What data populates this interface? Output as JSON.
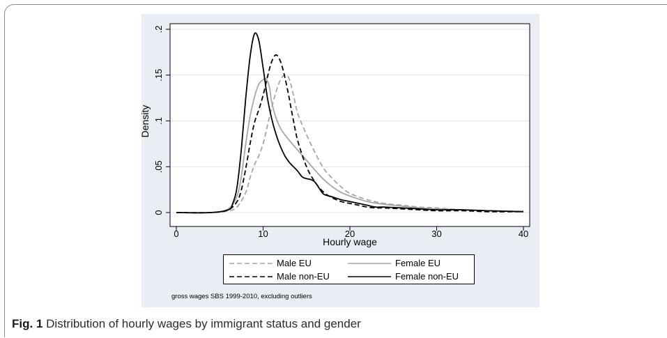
{
  "caption": {
    "label": "Fig. 1",
    "text": "Distribution of hourly wages by immigrant status and gender"
  },
  "note": "gross wages SBS 1999-2010, excluding outliers",
  "chart_data": {
    "type": "line",
    "title": "",
    "xlabel": "Hourly wage",
    "ylabel": "Density",
    "xlim": [
      0,
      40
    ],
    "ylim": [
      0,
      0.2
    ],
    "xticks": [
      0,
      10,
      20,
      30,
      40
    ],
    "xtick_labels": [
      "0",
      "10",
      "20",
      "30",
      "40"
    ],
    "yticks": [
      0,
      0.05,
      0.1,
      0.15,
      0.2
    ],
    "ytick_labels": [
      "0",
      ".05",
      ".1",
      ".15",
      ".2"
    ],
    "grid": "horizontal",
    "legend_position": "bottom",
    "series": [
      {
        "name": "Male EU",
        "color": "#a6a6a6",
        "style": "dashed",
        "x": [
          0,
          4,
          6,
          7,
          8,
          8.5,
          9,
          9.5,
          10,
          10.5,
          11,
          11.5,
          12,
          12.5,
          13,
          13.5,
          14,
          15,
          16,
          17,
          18,
          19,
          20,
          22,
          24,
          26,
          28,
          30,
          33,
          36,
          40
        ],
        "y": [
          0,
          0,
          0.002,
          0.006,
          0.022,
          0.038,
          0.052,
          0.062,
          0.075,
          0.095,
          0.115,
          0.132,
          0.145,
          0.15,
          0.146,
          0.128,
          0.108,
          0.085,
          0.065,
          0.048,
          0.037,
          0.028,
          0.021,
          0.014,
          0.01,
          0.008,
          0.006,
          0.005,
          0.003,
          0.002,
          0.001
        ]
      },
      {
        "name": "Female EU",
        "color": "#a6a6a6",
        "style": "solid",
        "x": [
          0,
          4,
          6,
          7,
          7.5,
          8,
          8.5,
          9,
          9.5,
          10,
          10.3,
          10.7,
          11,
          11.5,
          12,
          12.5,
          13,
          14,
          15,
          16,
          17,
          18,
          19,
          20,
          22,
          24,
          26,
          28,
          30,
          33,
          36,
          40
        ],
        "y": [
          0,
          0,
          0.004,
          0.018,
          0.04,
          0.075,
          0.105,
          0.126,
          0.14,
          0.145,
          0.146,
          0.138,
          0.12,
          0.103,
          0.092,
          0.085,
          0.079,
          0.068,
          0.057,
          0.046,
          0.036,
          0.028,
          0.022,
          0.018,
          0.012,
          0.009,
          0.007,
          0.005,
          0.004,
          0.003,
          0.002,
          0.001
        ]
      },
      {
        "name": "Male non-EU",
        "color": "#000000",
        "style": "dashed",
        "x": [
          0,
          4,
          6,
          7,
          7.5,
          8,
          8.5,
          9,
          9.5,
          10,
          10.5,
          11,
          11.5,
          12,
          12.5,
          13,
          13.5,
          14,
          15,
          16,
          17,
          18,
          19,
          20,
          21,
          22,
          23,
          24,
          26,
          28,
          30,
          33,
          36,
          40
        ],
        "y": [
          0,
          0,
          0.003,
          0.012,
          0.025,
          0.048,
          0.075,
          0.098,
          0.112,
          0.128,
          0.148,
          0.165,
          0.172,
          0.165,
          0.148,
          0.125,
          0.1,
          0.078,
          0.05,
          0.033,
          0.022,
          0.016,
          0.012,
          0.01,
          0.008,
          0.006,
          0.005,
          0.005,
          0.004,
          0.003,
          0.002,
          0.002,
          0.001,
          0.001
        ]
      },
      {
        "name": "Female non-EU",
        "color": "#000000",
        "style": "solid",
        "x": [
          0,
          4,
          6,
          6.5,
          7,
          7.5,
          8,
          8.5,
          9,
          9.5,
          10,
          10.5,
          11,
          11.5,
          12,
          12.5,
          13,
          13.5,
          14,
          14.5,
          15,
          15.5,
          16,
          16.5,
          17,
          18,
          19,
          20,
          21,
          22,
          23,
          24,
          26,
          28,
          30,
          33,
          36,
          40
        ],
        "y": [
          0,
          0,
          0.003,
          0.01,
          0.028,
          0.07,
          0.125,
          0.17,
          0.195,
          0.188,
          0.158,
          0.125,
          0.102,
          0.085,
          0.072,
          0.062,
          0.055,
          0.05,
          0.045,
          0.039,
          0.037,
          0.036,
          0.033,
          0.026,
          0.02,
          0.017,
          0.014,
          0.012,
          0.01,
          0.008,
          0.006,
          0.006,
          0.005,
          0.004,
          0.003,
          0.003,
          0.002,
          0.001
        ]
      }
    ]
  }
}
